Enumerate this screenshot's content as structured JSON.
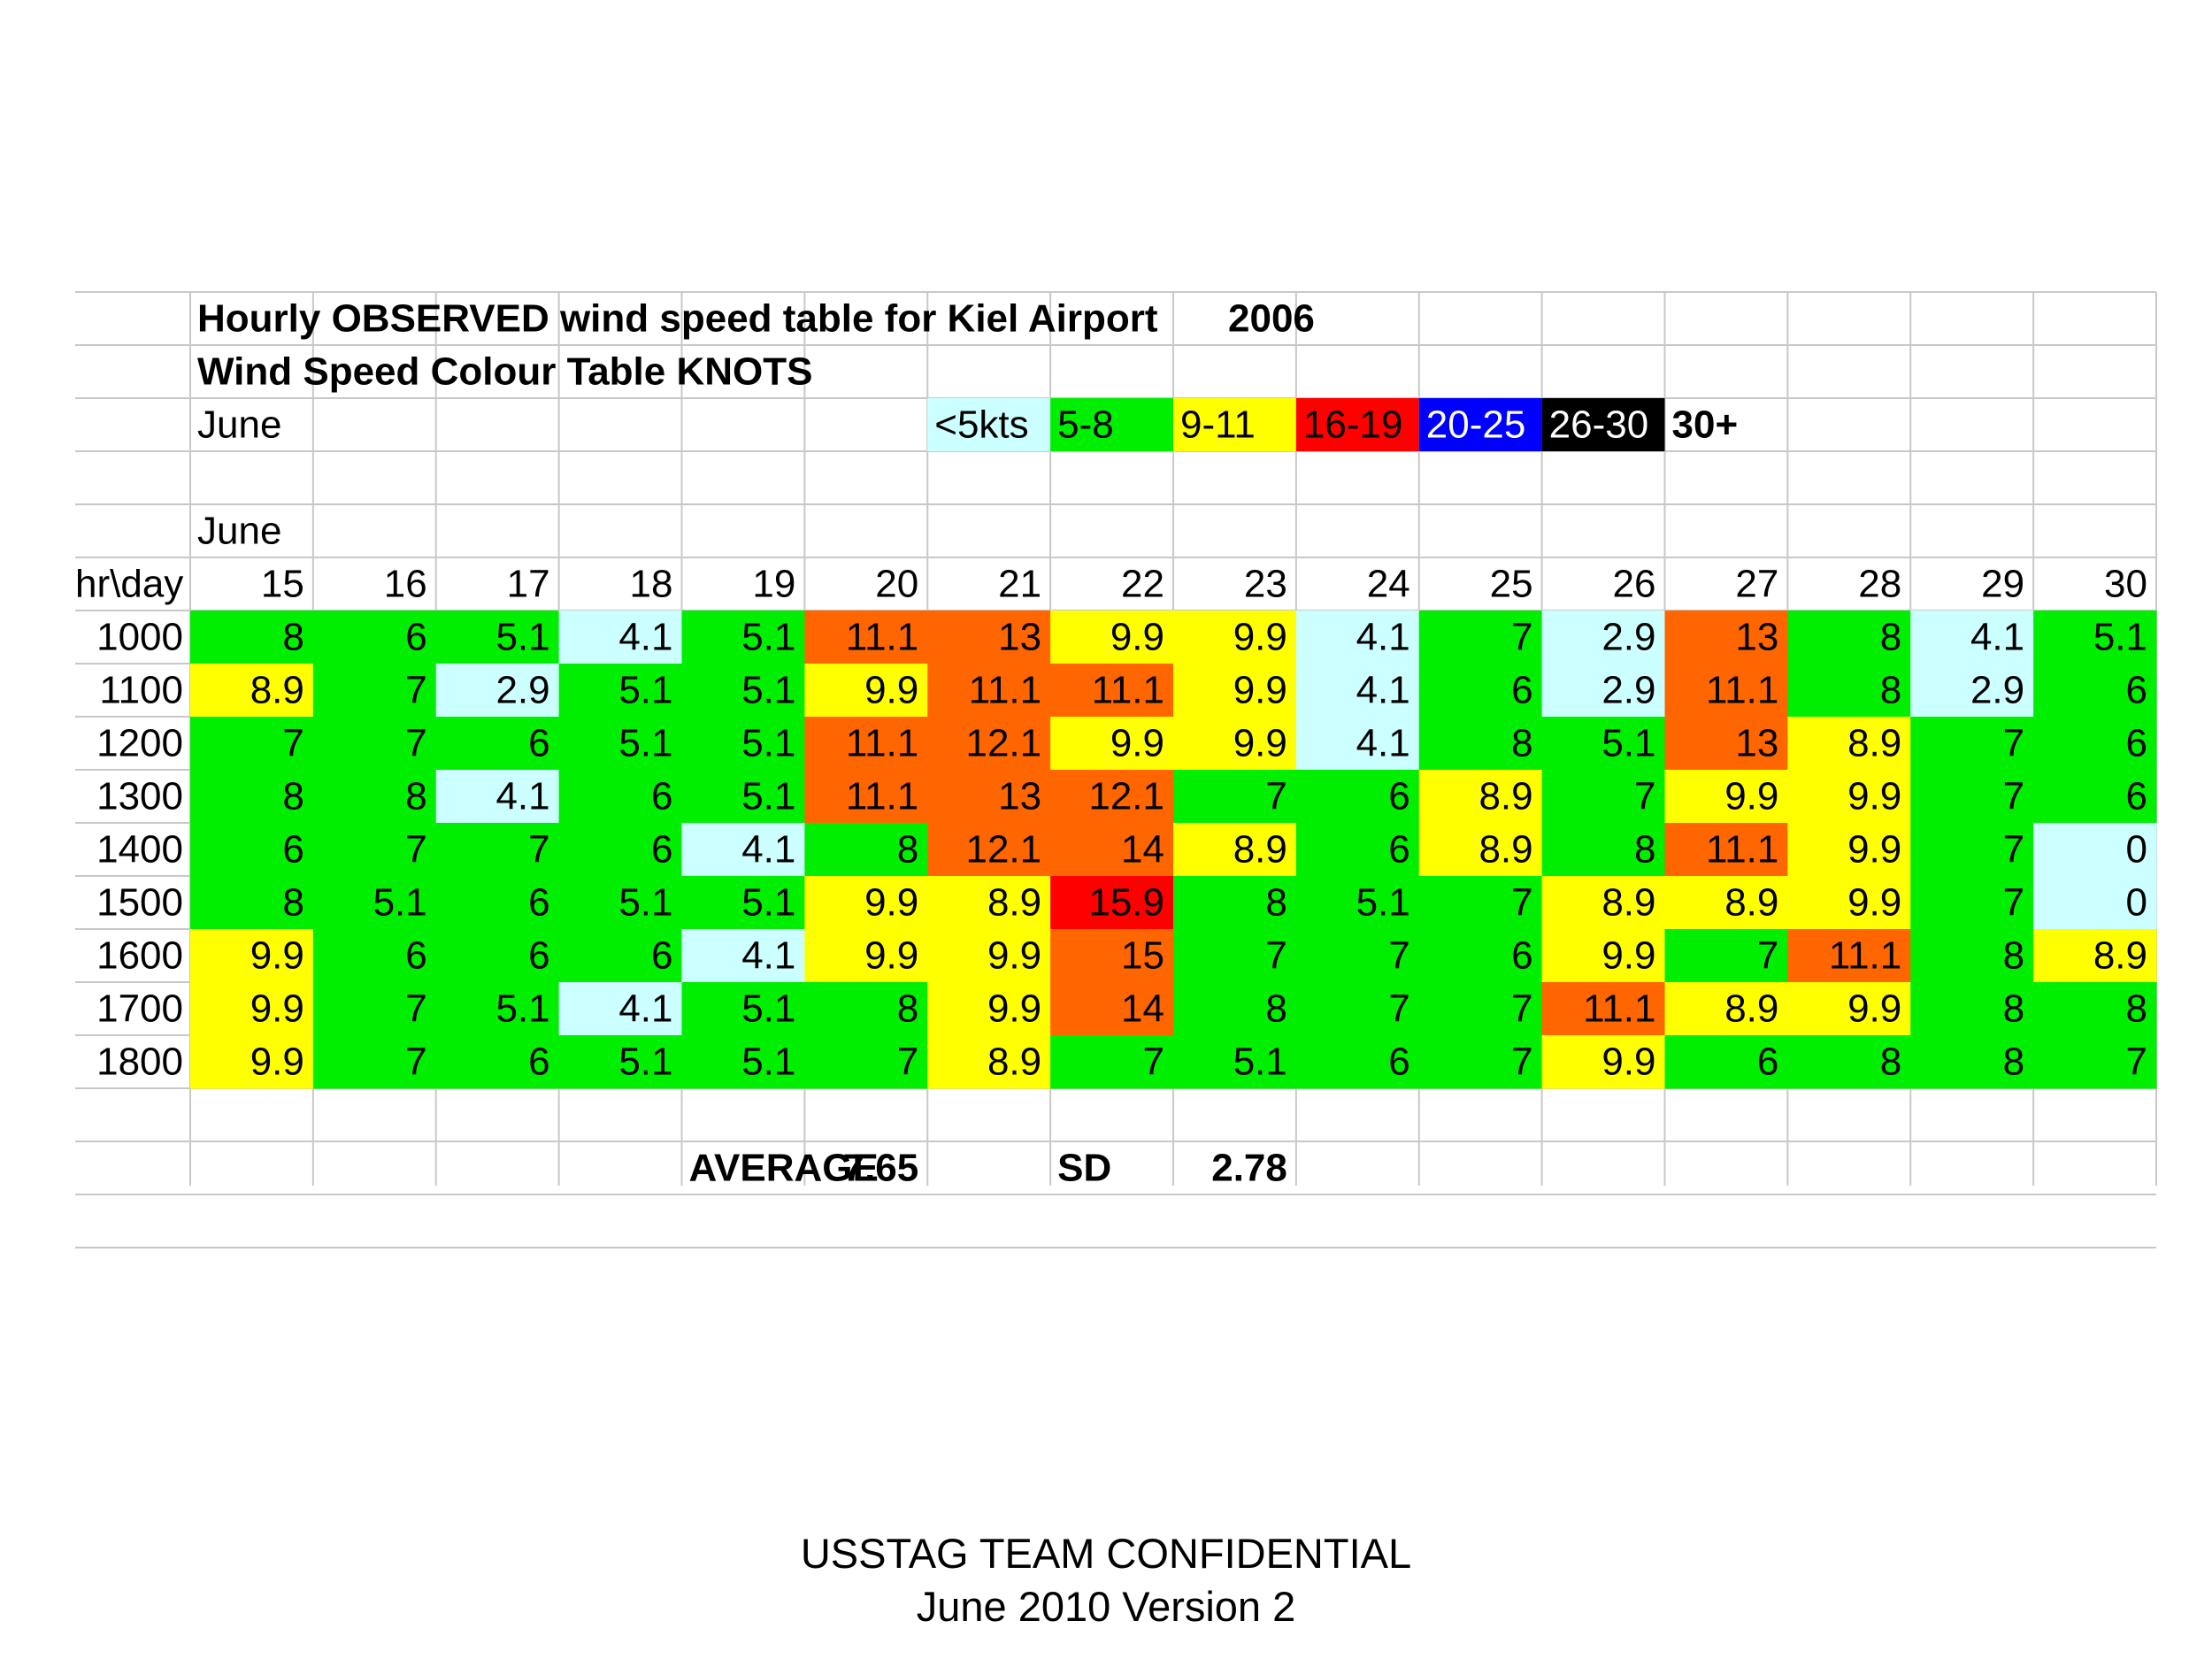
{
  "title": "Hourly OBSERVED wind speed table for Kiel Airport",
  "year": "2006",
  "subtitle": "Wind Speed Colour Table KNOTS",
  "month_label_1": "June",
  "month_label_2": "June",
  "legend": [
    {
      "label": "<5kts",
      "bg": "#ccffff",
      "fg": "#000000"
    },
    {
      "label": "5-8",
      "bg": "#00ee00",
      "fg": "#000000"
    },
    {
      "label": "9-11",
      "bg": "#ffff00",
      "fg": "#000000"
    },
    {
      "label": "16-19",
      "bg": "#ff0000",
      "fg": "#000000"
    },
    {
      "label": "20-25",
      "bg": "#0000ff",
      "fg": "#ffffff"
    },
    {
      "label": "26-30",
      "bg": "#000000",
      "fg": "#ffffff"
    },
    {
      "label": "30+",
      "bg": "#ffffff",
      "fg": "#000000",
      "bold": true
    }
  ],
  "colors": {
    "light_blue": "#ccffff",
    "green": "#00ee00",
    "yellow": "#ffff00",
    "orange": "#ff6600",
    "red": "#ff0000",
    "grid": "#c8c8c8"
  },
  "chart_data": {
    "type": "heatmap",
    "title": "Hourly OBSERVED wind speed table for Kiel Airport 2006",
    "subtitle": "Wind Speed Colour Table KNOTS",
    "corner_label": "hr\\day",
    "x": [
      "15",
      "16",
      "17",
      "18",
      "19",
      "20",
      "21",
      "22",
      "23",
      "24",
      "25",
      "26",
      "27",
      "28",
      "29",
      "30"
    ],
    "y": [
      "1000",
      "1100",
      "1200",
      "1300",
      "1400",
      "1500",
      "1600",
      "1700",
      "1800"
    ],
    "values": [
      [
        "8",
        "6",
        "5.1",
        "4.1",
        "5.1",
        "11.1",
        "13",
        "9.9",
        "9.9",
        "4.1",
        "7",
        "2.9",
        "13",
        "8",
        "4.1",
        "5.1"
      ],
      [
        "8.9",
        "7",
        "2.9",
        "5.1",
        "5.1",
        "9.9",
        "11.1",
        "11.1",
        "9.9",
        "4.1",
        "6",
        "2.9",
        "11.1",
        "8",
        "2.9",
        "6"
      ],
      [
        "7",
        "7",
        "6",
        "5.1",
        "5.1",
        "11.1",
        "12.1",
        "9.9",
        "9.9",
        "4.1",
        "8",
        "5.1",
        "13",
        "8.9",
        "7",
        "6"
      ],
      [
        "8",
        "8",
        "4.1",
        "6",
        "5.1",
        "11.1",
        "13",
        "12.1",
        "7",
        "6",
        "8.9",
        "7",
        "9.9",
        "9.9",
        "7",
        "6"
      ],
      [
        "6",
        "7",
        "7",
        "6",
        "4.1",
        "8",
        "12.1",
        "14",
        "8.9",
        "6",
        "8.9",
        "8",
        "11.1",
        "9.9",
        "7",
        "0"
      ],
      [
        "8",
        "5.1",
        "6",
        "5.1",
        "5.1",
        "9.9",
        "8.9",
        "15.9",
        "8",
        "5.1",
        "7",
        "8.9",
        "8.9",
        "9.9",
        "7",
        "0"
      ],
      [
        "9.9",
        "6",
        "6",
        "6",
        "4.1",
        "9.9",
        "9.9",
        "15",
        "7",
        "7",
        "6",
        "9.9",
        "7",
        "11.1",
        "8",
        "8.9"
      ],
      [
        "9.9",
        "7",
        "5.1",
        "4.1",
        "5.1",
        "8",
        "9.9",
        "14",
        "8",
        "7",
        "7",
        "11.1",
        "8.9",
        "9.9",
        "8",
        "8"
      ],
      [
        "9.9",
        "7",
        "6",
        "5.1",
        "5.1",
        "7",
        "8.9",
        "7",
        "5.1",
        "6",
        "7",
        "9.9",
        "6",
        "8",
        "8",
        "7"
      ]
    ],
    "cell_colors": [
      [
        "green",
        "green",
        "green",
        "light_blue",
        "green",
        "orange",
        "orange",
        "yellow",
        "yellow",
        "light_blue",
        "green",
        "light_blue",
        "orange",
        "green",
        "light_blue",
        "green"
      ],
      [
        "yellow",
        "green",
        "light_blue",
        "green",
        "green",
        "yellow",
        "orange",
        "orange",
        "yellow",
        "light_blue",
        "green",
        "light_blue",
        "orange",
        "green",
        "light_blue",
        "green"
      ],
      [
        "green",
        "green",
        "green",
        "green",
        "green",
        "orange",
        "orange",
        "yellow",
        "yellow",
        "light_blue",
        "green",
        "green",
        "orange",
        "yellow",
        "green",
        "green"
      ],
      [
        "green",
        "green",
        "light_blue",
        "green",
        "green",
        "orange",
        "orange",
        "orange",
        "green",
        "green",
        "yellow",
        "green",
        "yellow",
        "yellow",
        "green",
        "green"
      ],
      [
        "green",
        "green",
        "green",
        "green",
        "light_blue",
        "green",
        "orange",
        "orange",
        "yellow",
        "green",
        "yellow",
        "green",
        "orange",
        "yellow",
        "green",
        "light_blue"
      ],
      [
        "green",
        "green",
        "green",
        "green",
        "green",
        "yellow",
        "yellow",
        "red",
        "green",
        "green",
        "green",
        "yellow",
        "yellow",
        "yellow",
        "green",
        "light_blue"
      ],
      [
        "yellow",
        "green",
        "green",
        "green",
        "light_blue",
        "yellow",
        "yellow",
        "orange",
        "green",
        "green",
        "green",
        "yellow",
        "green",
        "orange",
        "green",
        "yellow"
      ],
      [
        "yellow",
        "green",
        "green",
        "light_blue",
        "green",
        "green",
        "yellow",
        "orange",
        "green",
        "green",
        "green",
        "orange",
        "yellow",
        "yellow",
        "green",
        "green"
      ],
      [
        "yellow",
        "green",
        "green",
        "green",
        "green",
        "green",
        "yellow",
        "green",
        "green",
        "green",
        "green",
        "yellow",
        "green",
        "green",
        "green",
        "green"
      ]
    ],
    "average_label": "AVERAGE",
    "average_value": "7.65",
    "sd_label": "SD",
    "sd_value": "2.78"
  },
  "footer": {
    "line1": "USSTAG TEAM CONFIDENTIAL",
    "line2": "June 2010 Version 2"
  }
}
